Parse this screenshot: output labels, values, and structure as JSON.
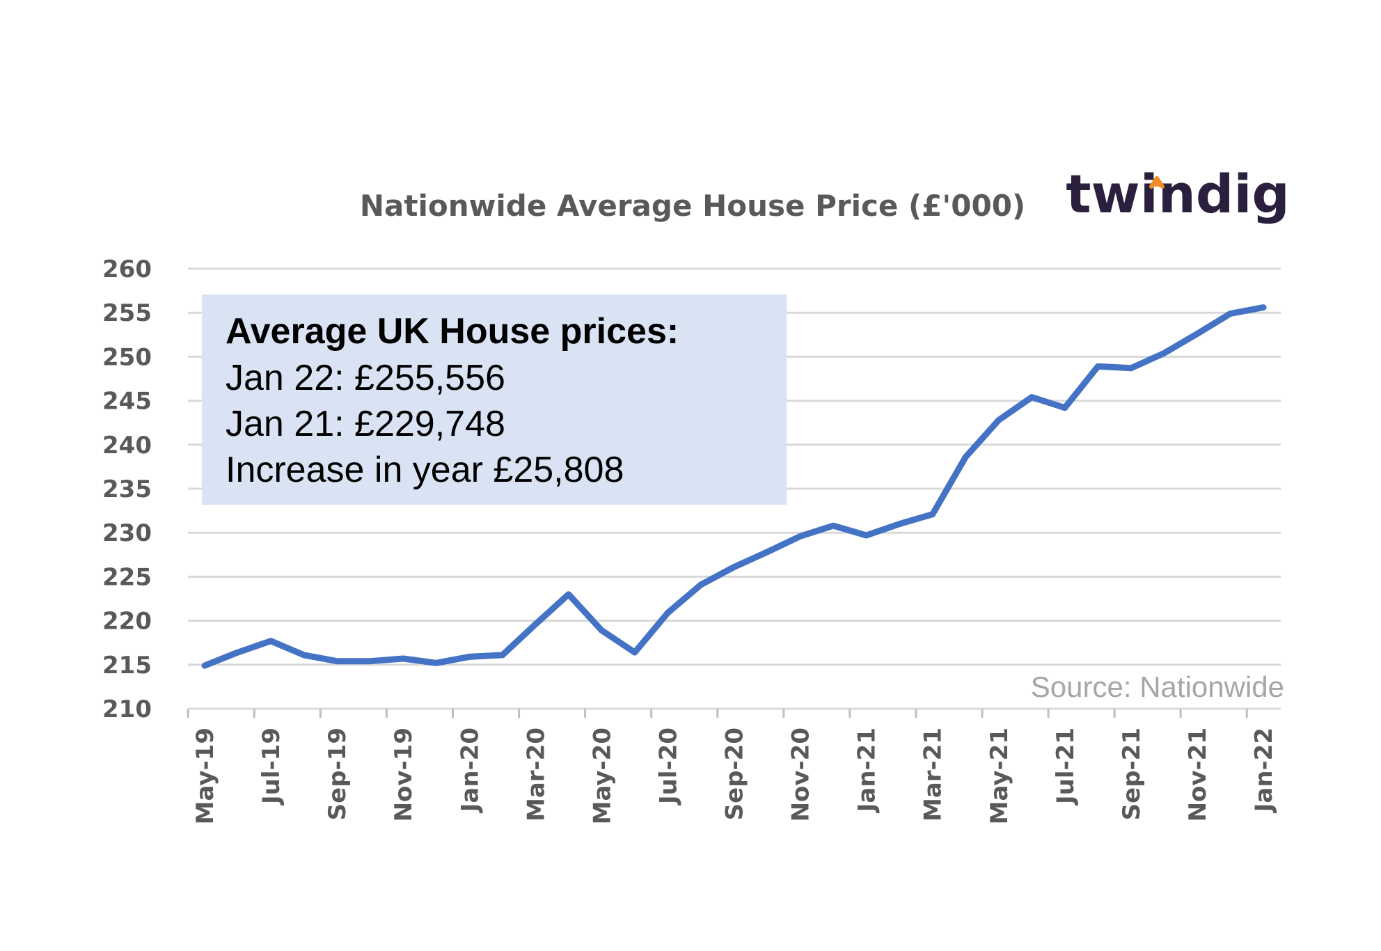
{
  "logo": {
    "text": "twindig",
    "accent_color": "#f28c28",
    "color": "#2a1f3d"
  },
  "annotation": {
    "heading": "Average UK House prices:",
    "lines": [
      "Jan 22: £255,556",
      "Jan 21: £229,748",
      "Increase in year  £25,808"
    ],
    "background": "#dae3f3"
  },
  "source_note": "Source: Nationwide",
  "chart_data": {
    "type": "line",
    "title": "Nationwide Average House Price (£'000)",
    "xlabel": "",
    "ylabel": "",
    "ylim": [
      210,
      260
    ],
    "ytick_step": 5,
    "grid": true,
    "line_color": "#4472c4",
    "categories": [
      "May-19",
      "Jun-19",
      "Jul-19",
      "Aug-19",
      "Sep-19",
      "Oct-19",
      "Nov-19",
      "Dec-19",
      "Jan-20",
      "Feb-20",
      "Mar-20",
      "Apr-20",
      "May-20",
      "Jun-20",
      "Jul-20",
      "Aug-20",
      "Sep-20",
      "Oct-20",
      "Nov-20",
      "Dec-20",
      "Jan-21",
      "Feb-21",
      "Mar-21",
      "Apr-21",
      "May-21",
      "Jun-21",
      "Jul-21",
      "Aug-21",
      "Sep-21",
      "Oct-21",
      "Nov-21",
      "Dec-21",
      "Jan-22"
    ],
    "xtick_labels": [
      "May-19",
      "Jul-19",
      "Sep-19",
      "Nov-19",
      "Jan-20",
      "Mar-20",
      "May-20",
      "Jul-20",
      "Sep-20",
      "Nov-20",
      "Jan-21",
      "Mar-21",
      "May-21",
      "Jul-21",
      "Sep-21",
      "Nov-21",
      "Jan-22"
    ],
    "series": [
      {
        "values": [
          214.9,
          216.4,
          217.7,
          216.1,
          215.4,
          215.4,
          215.7,
          215.2,
          215.9,
          216.1,
          219.6,
          223.0,
          218.9,
          216.4,
          220.9,
          224.1,
          226.1,
          227.8,
          229.6,
          230.8,
          229.7,
          231.0,
          232.1,
          238.6,
          242.8,
          245.4,
          244.2,
          248.9,
          248.7,
          250.4,
          252.6,
          254.9,
          255.6
        ]
      }
    ]
  }
}
